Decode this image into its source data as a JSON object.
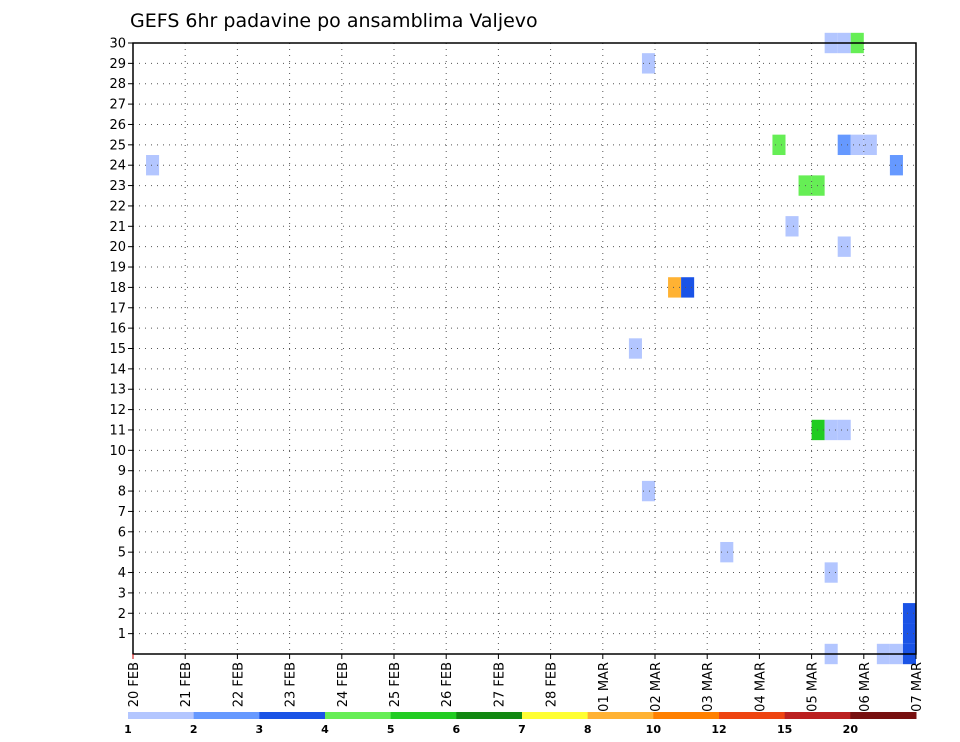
{
  "chart_data": {
    "type": "heatmap",
    "title": "GEFS 6hr padavine po ansamblima Valjevo",
    "x_tick_labels": [
      "20 FEB",
      "21 FEB",
      "22 FEB",
      "23 FEB",
      "24 FEB",
      "25 FEB",
      "26 FEB",
      "27 FEB",
      "28 FEB",
      "01 MAR",
      "02 MAR",
      "03 MAR",
      "04 MAR",
      "05 MAR",
      "06 MAR",
      "07 MAR"
    ],
    "x_range_days": [
      0,
      15
    ],
    "y_tick_labels": [
      "1",
      "2",
      "3",
      "4",
      "5",
      "6",
      "7",
      "8",
      "9",
      "10",
      "11",
      "12",
      "13",
      "14",
      "15",
      "16",
      "17",
      "18",
      "19",
      "20",
      "21",
      "22",
      "23",
      "24",
      "25",
      "26",
      "27",
      "28",
      "29",
      "30"
    ],
    "y_range": [
      0,
      30
    ],
    "grid": true,
    "colorbar": {
      "labels": [
        "1",
        "2",
        "3",
        "4",
        "5",
        "6",
        "7",
        "8",
        "10",
        "12",
        "15",
        "20"
      ],
      "colors": [
        "#b3c6ff",
        "#6699ff",
        "#1a53e6",
        "#66ee55",
        "#22cc22",
        "#118811",
        "#ffff33",
        "#ffb233",
        "#ff8000",
        "#ee4411",
        "#bb2020",
        "#771010"
      ]
    },
    "cells": [
      {
        "day": 0.25,
        "member": 24,
        "level": 0
      },
      {
        "day": 9.5,
        "member": 15,
        "level": 0
      },
      {
        "day": 9.75,
        "member": 29,
        "level": 0
      },
      {
        "day": 9.75,
        "member": 8,
        "level": 0
      },
      {
        "day": 10.25,
        "member": 18,
        "level": 7
      },
      {
        "day": 10.5,
        "member": 18,
        "level": 2
      },
      {
        "day": 11.25,
        "member": 5,
        "level": 0
      },
      {
        "day": 12.25,
        "member": 25,
        "level": 3
      },
      {
        "day": 12.5,
        "member": 21,
        "level": 0
      },
      {
        "day": 12.75,
        "member": 23,
        "level": 3
      },
      {
        "day": 13.0,
        "member": 23,
        "level": 3
      },
      {
        "day": 13.0,
        "member": 11,
        "level": 4
      },
      {
        "day": 13.25,
        "member": 11,
        "level": 0
      },
      {
        "day": 13.5,
        "member": 11,
        "level": 0
      },
      {
        "day": 13.25,
        "member": 30,
        "level": 0
      },
      {
        "day": 13.5,
        "member": 30,
        "level": 0
      },
      {
        "day": 13.75,
        "member": 30,
        "level": 3
      },
      {
        "day": 13.25,
        "member": 4,
        "level": 0
      },
      {
        "day": 13.25,
        "member": 0,
        "level": 0
      },
      {
        "day": 13.5,
        "member": 25,
        "level": 1
      },
      {
        "day": 13.75,
        "member": 25,
        "level": 0
      },
      {
        "day": 14.0,
        "member": 25,
        "level": 0
      },
      {
        "day": 13.5,
        "member": 20,
        "level": 0
      },
      {
        "day": 14.25,
        "member": 0,
        "level": 0
      },
      {
        "day": 14.5,
        "member": 0,
        "level": 0
      },
      {
        "day": 14.5,
        "member": 24,
        "level": 1
      },
      {
        "day": 14.75,
        "member": 2,
        "level": 2
      },
      {
        "day": 14.75,
        "member": 1,
        "level": 2
      },
      {
        "day": 14.75,
        "member": 0,
        "level": 2
      }
    ]
  }
}
